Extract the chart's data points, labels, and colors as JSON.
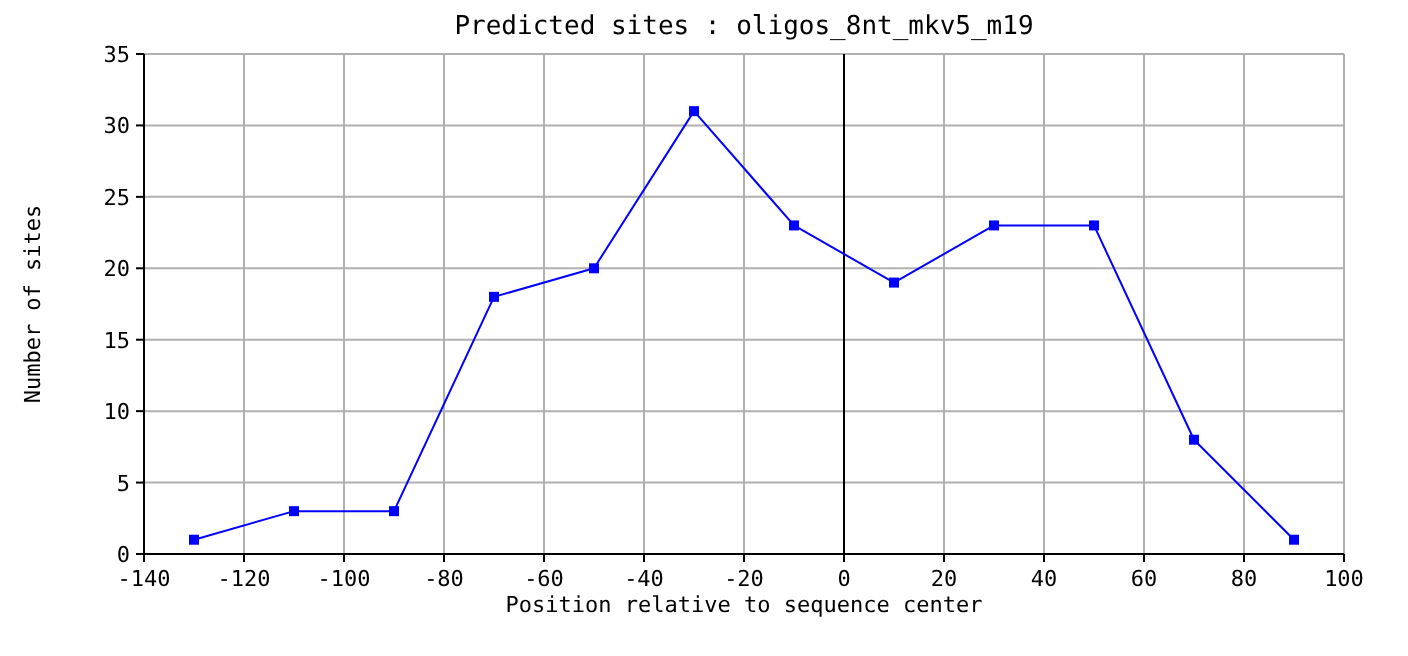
{
  "chart_data": {
    "type": "line",
    "title": "Predicted sites : oligos_8nt_mkv5_m19",
    "xlabel": "Position relative to sequence center",
    "ylabel": "Number of sites",
    "x": [
      -130,
      -110,
      -90,
      -70,
      -50,
      -30,
      -10,
      10,
      30,
      50,
      70,
      90
    ],
    "series": [
      {
        "color": "#0000ff",
        "values": [
          1,
          3,
          3,
          18,
          20,
          31,
          23,
          19,
          23,
          23,
          8,
          1
        ]
      }
    ],
    "xlim": [
      -140,
      100
    ],
    "xticks": [
      -140,
      -120,
      -100,
      -80,
      -60,
      -40,
      -20,
      0,
      20,
      40,
      60,
      80,
      100
    ],
    "ylim": [
      0,
      35
    ],
    "yticks": [
      0,
      5,
      10,
      15,
      20,
      25,
      30,
      35
    ],
    "grid": true,
    "marker": "square",
    "line_style": "solid",
    "ref_lines": [
      {
        "axis": "x",
        "value": 0,
        "color": "#000000"
      }
    ]
  }
}
